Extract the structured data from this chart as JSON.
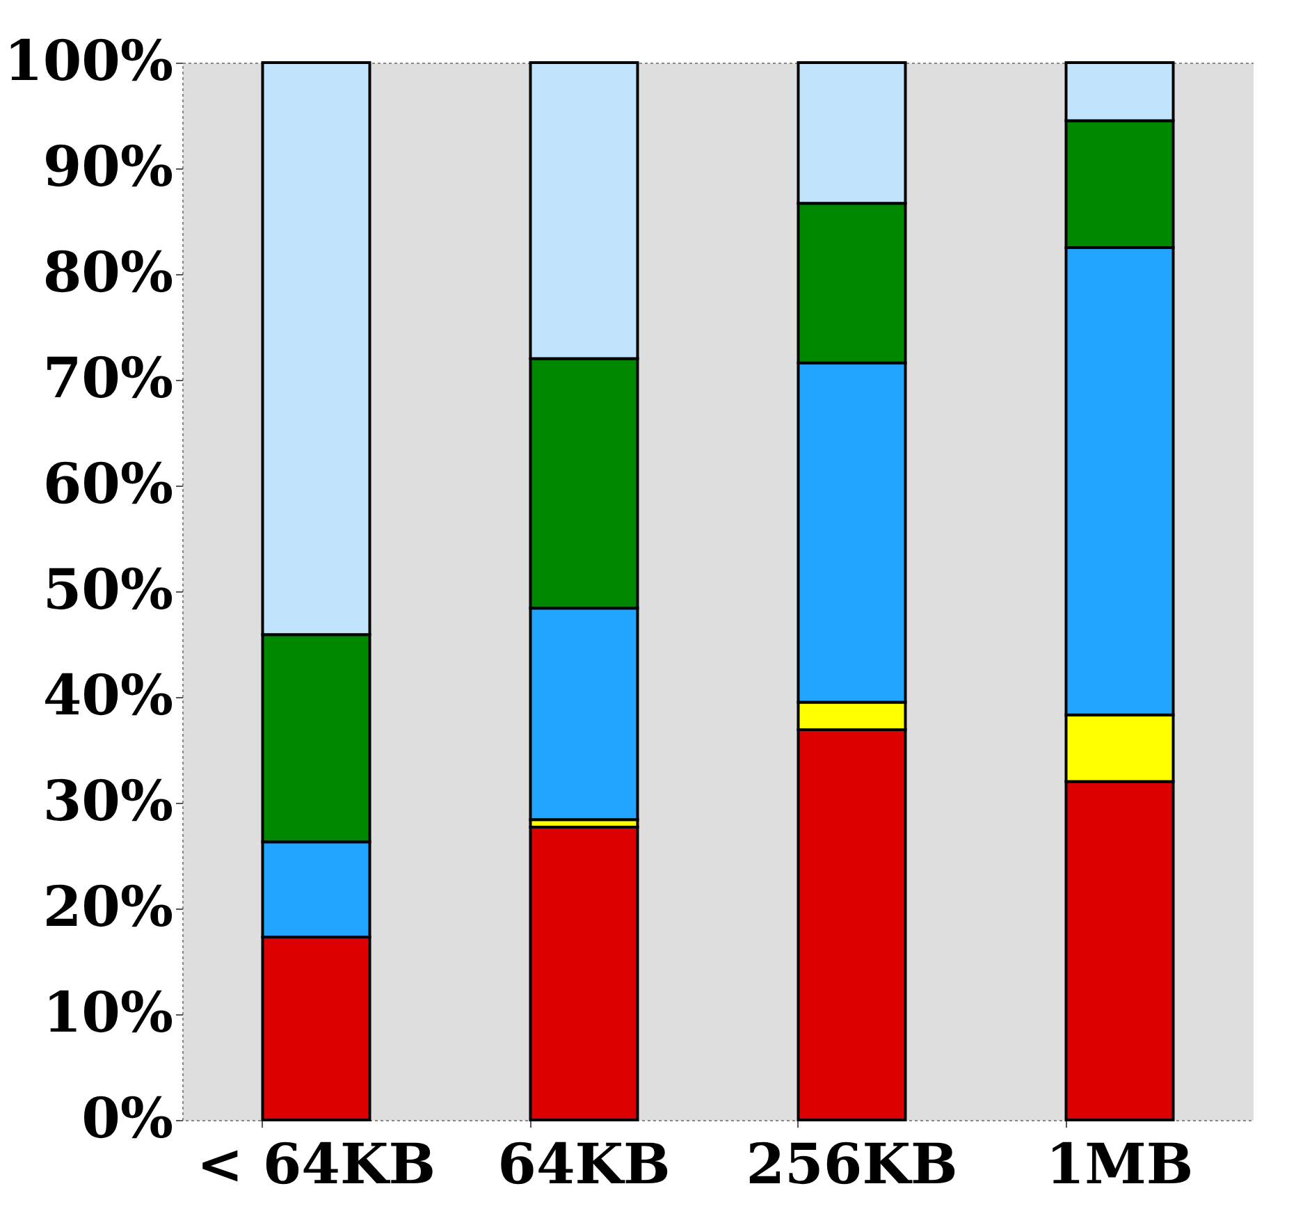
{
  "chart_data": {
    "type": "bar",
    "stacked": true,
    "categories": [
      "< 64KB",
      "64KB",
      "256KB",
      "1MB"
    ],
    "series": [
      {
        "color": "#dd0000",
        "values": [
          17.3,
          27.7,
          36.9,
          32.0
        ]
      },
      {
        "color": "#ffff00",
        "values": [
          0,
          0.7,
          2.6,
          6.3
        ]
      },
      {
        "color": "#22a5ff",
        "values": [
          9.0,
          20.0,
          32.1,
          44.2
        ]
      },
      {
        "color": "#008800",
        "values": [
          19.6,
          23.6,
          15.1,
          12.0
        ]
      },
      {
        "color": "#bfe4fc",
        "values": [
          54.1,
          28.0,
          13.3,
          5.5
        ]
      }
    ],
    "ylim": [
      0,
      100
    ],
    "yticks": [
      {
        "value": 0,
        "label": "0%"
      },
      {
        "value": 10,
        "label": "10%"
      },
      {
        "value": 20,
        "label": "20%"
      },
      {
        "value": 30,
        "label": "30%"
      },
      {
        "value": 40,
        "label": "40%"
      },
      {
        "value": 50,
        "label": "50%"
      },
      {
        "value": 60,
        "label": "60%"
      },
      {
        "value": 70,
        "label": "70%"
      },
      {
        "value": 80,
        "label": "80%"
      },
      {
        "value": 90,
        "label": "90%"
      },
      {
        "value": 100,
        "label": "100%"
      }
    ],
    "grid": false
  }
}
